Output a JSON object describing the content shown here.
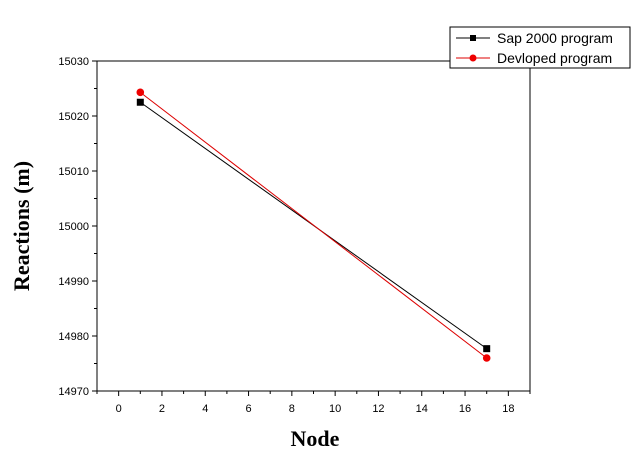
{
  "chart_data": {
    "type": "line",
    "title": "",
    "xlabel": "Node",
    "ylabel": "Reactions (m)",
    "xlim": [
      -1,
      19
    ],
    "ylim": [
      14970,
      15030
    ],
    "xticks": [
      "0",
      "2",
      "4",
      "6",
      "8",
      "10",
      "12",
      "14",
      "16",
      "18"
    ],
    "yticks": [
      "14970",
      "14980",
      "14990",
      "15000",
      "15010",
      "15020",
      "15030"
    ],
    "legend_position": "top-right",
    "grid": false,
    "series": [
      {
        "name": "Sap 2000 program",
        "color": "#000000",
        "marker": "square",
        "x": [
          1,
          17
        ],
        "y": [
          15022.5,
          14977.7
        ]
      },
      {
        "name": "Devloped program",
        "color": "#dd0000",
        "marker": "circle",
        "x": [
          1,
          17
        ],
        "y": [
          15024.3,
          14976.0
        ]
      }
    ]
  }
}
